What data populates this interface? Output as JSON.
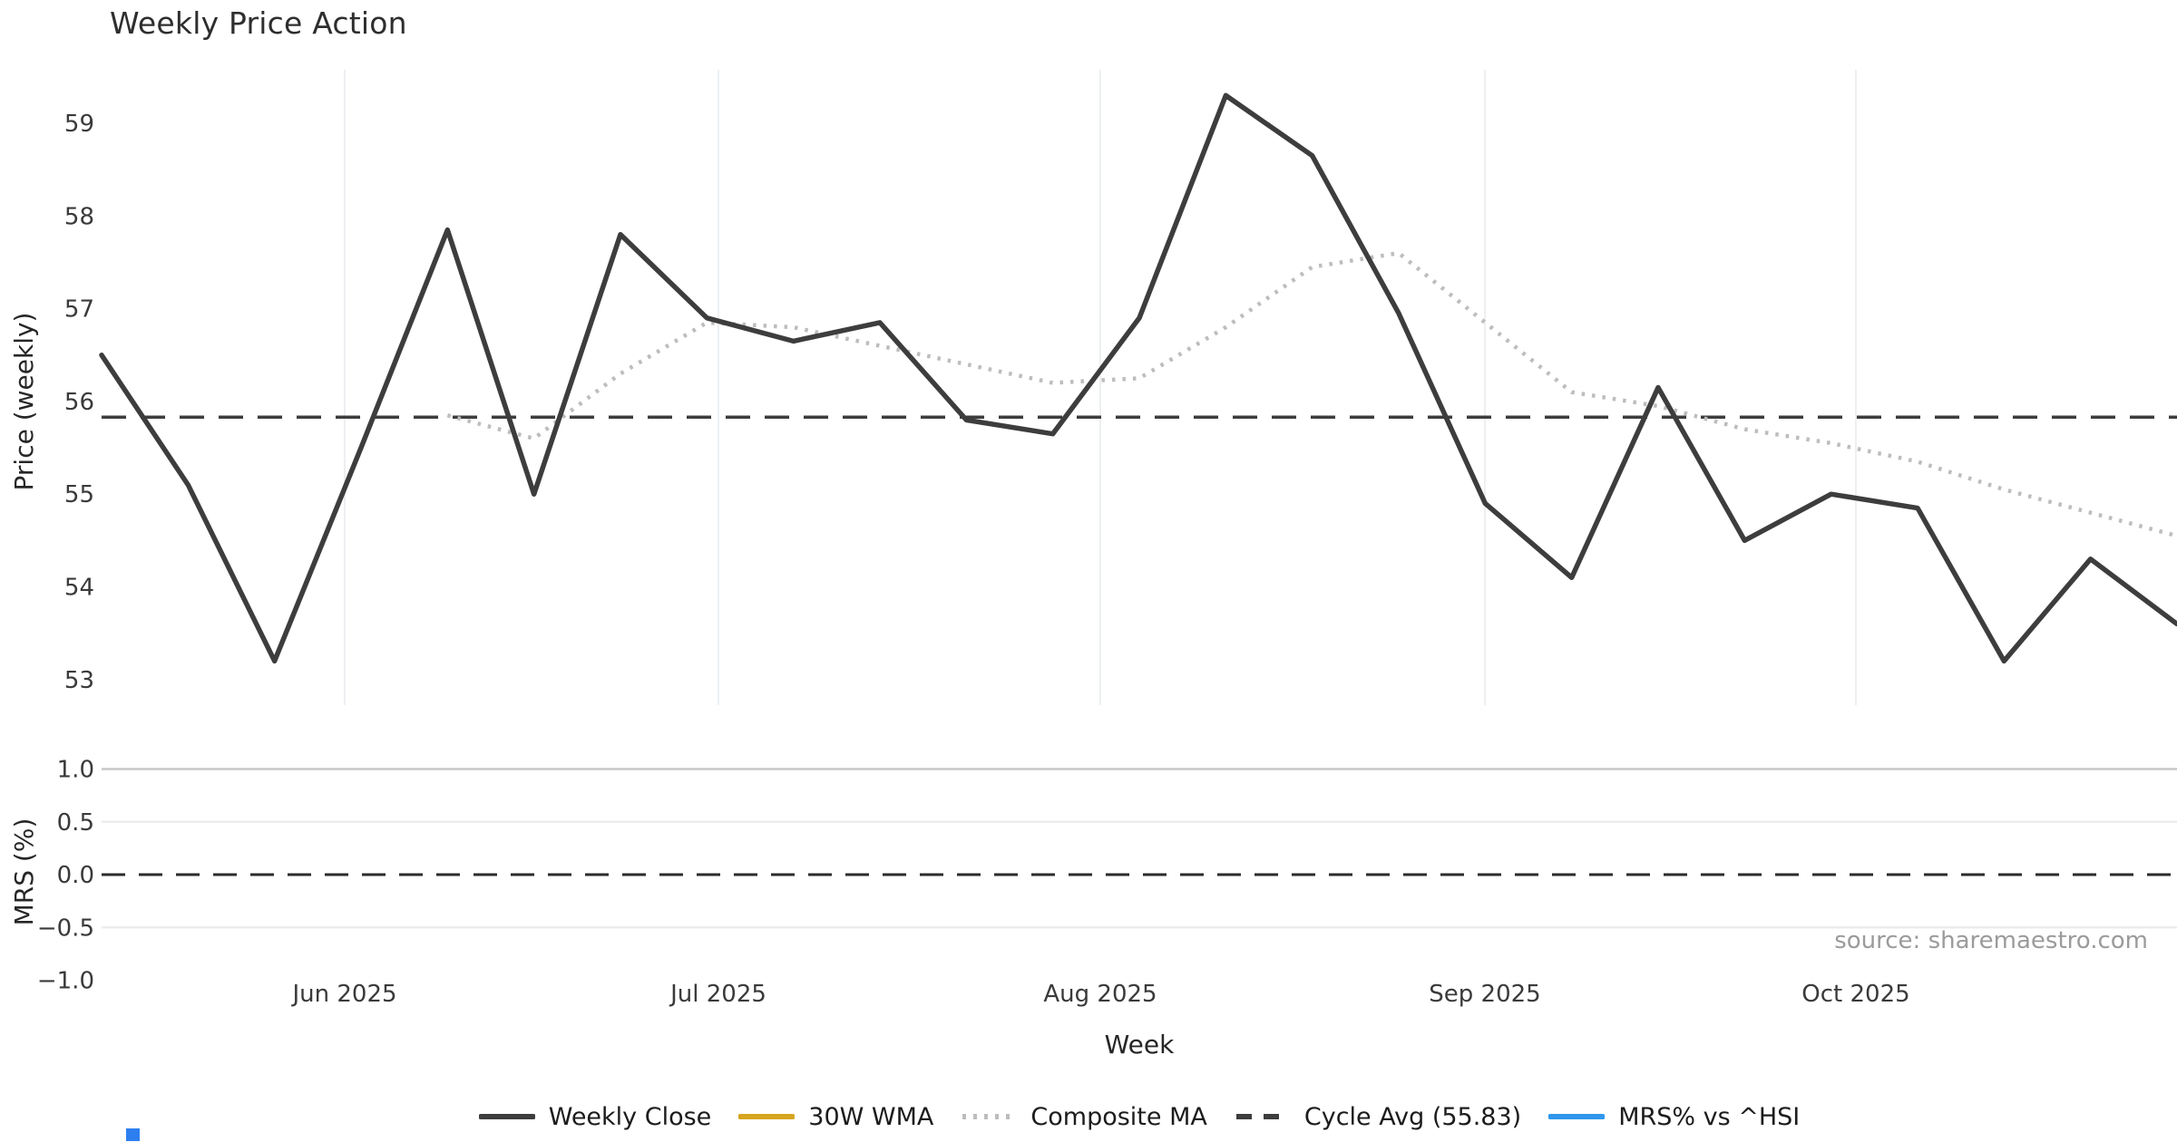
{
  "title": "Weekly Price Action",
  "source_note": "source: sharemaestro.com",
  "chart_data": {
    "type": "line",
    "title": "Weekly Price Action",
    "xlabel": "Week",
    "x_tick_labels": [
      "Jun 2025",
      "Jul 2025",
      "Aug 2025",
      "Sep 2025",
      "Oct 2025"
    ],
    "grid": "vertical-month-gridlines-top-panel, horizontal-gridlines-bottom-panel",
    "legend_position": "bottom-center",
    "panels": [
      {
        "name": "price",
        "ylabel": "Price (weekly)",
        "ylim": [
          52.7,
          59.6
        ],
        "yticks": [
          59,
          58,
          57,
          56,
          55,
          54,
          53
        ],
        "series": [
          {
            "name": "Weekly Close",
            "style": "solid",
            "color": "#3d3d3d",
            "values": [
              56.5,
              55.1,
              53.2,
              55.5,
              57.85,
              55.0,
              57.8,
              56.9,
              56.65,
              56.85,
              55.8,
              55.65,
              56.9,
              59.3,
              58.65,
              56.95,
              54.9,
              54.1,
              56.15,
              54.5,
              55.0,
              54.85,
              53.2,
              54.3,
              53.6
            ]
          },
          {
            "name": "Composite MA",
            "style": "dotted",
            "color": "#bdbdbd",
            "start_index": 4,
            "values": [
              55.85,
              55.6,
              56.3,
              56.85,
              56.8,
              56.6,
              56.4,
              56.2,
              56.25,
              56.8,
              57.45,
              57.6,
              56.85,
              56.1,
              55.95,
              55.7,
              55.55,
              55.35,
              55.05,
              54.8,
              54.55
            ]
          },
          {
            "name": "Cycle Avg",
            "style": "dashed",
            "color": "#3d3d3d",
            "constant_value": 55.83
          },
          {
            "name": "30W WMA",
            "style": "solid",
            "color": "#d6a41f",
            "values": []
          }
        ]
      },
      {
        "name": "mrs",
        "ylabel": "MRS (%)",
        "ylim": [
          -1.05,
          1.15
        ],
        "yticks": [
          1.0,
          0.5,
          0.0,
          -0.5,
          -1.0
        ],
        "ytick_labels": [
          "1.0",
          "0.5",
          "0.0",
          "−0.5",
          "−1.0"
        ],
        "zero_dashed_line": 0.0,
        "series": [
          {
            "name": "MRS% vs ^HSI",
            "style": "solid",
            "color": "#2f97ec",
            "values": []
          }
        ]
      }
    ]
  },
  "legend": {
    "items": [
      {
        "label": "Weekly Close",
        "color": "#3d3d3d",
        "style": "solid"
      },
      {
        "label": "30W WMA",
        "color": "#d6a41f",
        "style": "solid"
      },
      {
        "label": "Composite MA",
        "color": "#bdbdbd",
        "style": "dotted"
      },
      {
        "label": "Cycle Avg (55.83)",
        "color": "#3d3d3d",
        "style": "dashed"
      },
      {
        "label": "MRS% vs ^HSI",
        "color": "#2f97ec",
        "style": "solid"
      }
    ]
  },
  "colors": {
    "weekly_close": "#3d3d3d",
    "wma_30w": "#d6a41f",
    "composite_ma": "#bdbdbd",
    "cycle_avg": "#3d3d3d",
    "mrs_blue": "#2f97ec",
    "month_gridline": "#edeff2",
    "h_gridline_major": "#c7c7c7",
    "h_gridline_minor": "#ededed",
    "tick_text": "#3a3a3a",
    "source_text": "#9b9b9b"
  }
}
